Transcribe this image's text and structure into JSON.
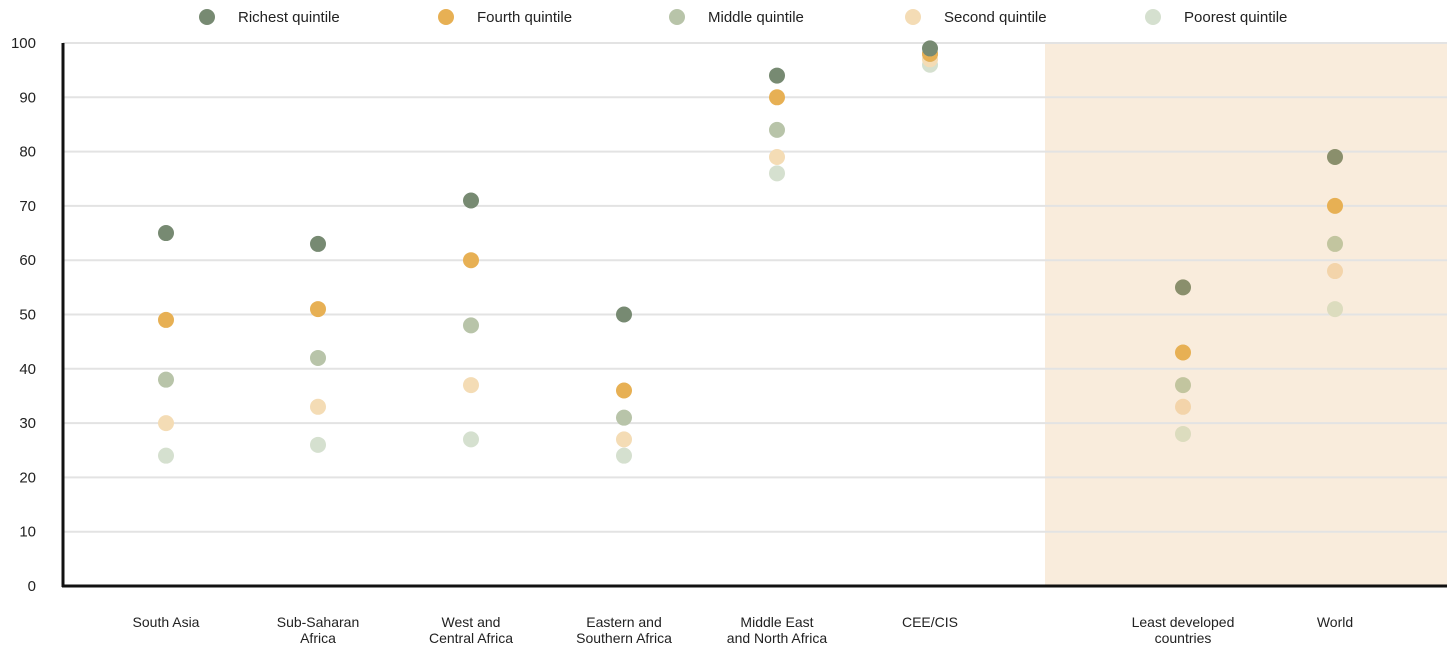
{
  "chart_data": {
    "type": "scatter",
    "title": "",
    "xlabel": "",
    "ylabel": "",
    "ylim": [
      0,
      100
    ],
    "yticks": [
      0,
      10,
      20,
      30,
      40,
      50,
      60,
      70,
      80,
      90,
      100
    ],
    "grid": true,
    "legend_position": "top",
    "categories": [
      [
        "South Asia"
      ],
      [
        "Sub-Saharan",
        "Africa"
      ],
      [
        "West and",
        "Central Africa"
      ],
      [
        "Eastern and",
        "Southern Africa"
      ],
      [
        "Middle East",
        "and North Africa"
      ],
      [
        "CEE/CIS"
      ],
      [
        "Least developed",
        "countries"
      ],
      [
        "World"
      ]
    ],
    "highlighted_categories": [
      "Least developed countries",
      "World"
    ],
    "highlight_color": "#f9ecdc",
    "series": [
      {
        "name": "Richest quintile",
        "color": "#778a72",
        "color_highlight": "#8a8f6c",
        "values": [
          65,
          63,
          71,
          50,
          94,
          99,
          55,
          79
        ]
      },
      {
        "name": "Fourth quintile",
        "color": "#e7b054",
        "color_highlight": "#e7b054",
        "values": [
          49,
          51,
          60,
          36,
          90,
          98,
          43,
          70
        ]
      },
      {
        "name": "Middle quintile",
        "color": "#b8c4a9",
        "color_highlight": "#c2c59f",
        "values": [
          38,
          42,
          48,
          31,
          84,
          98,
          37,
          63
        ]
      },
      {
        "name": "Second quintile",
        "color": "#f4dcb5",
        "color_highlight": "#f3d4aa",
        "values": [
          30,
          33,
          37,
          27,
          79,
          97,
          33,
          58
        ]
      },
      {
        "name": "Poorest quintile",
        "color": "#d5e0cf",
        "color_highlight": "#dcdcbe",
        "values": [
          24,
          26,
          27,
          24,
          76,
          96,
          28,
          51
        ]
      }
    ]
  }
}
